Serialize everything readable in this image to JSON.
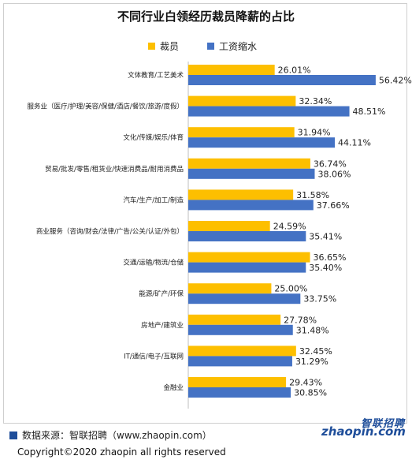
{
  "title": "不同行业白领经历裁员降薪的占比",
  "legend": [
    {
      "name": "裁员",
      "color": "#fdbf00"
    },
    {
      "name": "工资缩水",
      "color": "#4472c4"
    }
  ],
  "chart_data": {
    "type": "bar",
    "orientation": "horizontal",
    "title": "不同行业白领经历裁员降薪的占比",
    "categories": [
      "文体教育/工艺美术",
      "服务业（医疗/护理/美容/保健/酒店/餐饮/旅游/度假）",
      "文化/传媒/娱乐/体育",
      "贸易/批发/零售/租赁业/快速消费品/耐用消费品",
      "汽车/生产/加工/制造",
      "商业服务（咨询/财会/法律/广告/公关/认证/外包）",
      "交通/运输/物流/仓储",
      "能源/矿产/环保",
      "房地产/建筑业",
      "IT/通信/电子/互联网",
      "金融业"
    ],
    "series": [
      {
        "name": "裁员",
        "color": "#fdbf00",
        "values": [
          26.01,
          32.34,
          31.94,
          36.74,
          31.58,
          24.59,
          36.65,
          25.0,
          27.78,
          32.45,
          29.43
        ],
        "labels": [
          "26.01%",
          "32.34%",
          "31.94%",
          "36.74%",
          "31.58%",
          "24.59%",
          "36.65%",
          "25.00%",
          "27.78%",
          "32.45%",
          "29.43%"
        ]
      },
      {
        "name": "工资缩水",
        "color": "#4472c4",
        "values": [
          56.42,
          48.51,
          44.11,
          38.06,
          37.66,
          35.41,
          35.4,
          33.75,
          31.48,
          31.29,
          30.85
        ],
        "labels": [
          "56.42%",
          "48.51%",
          "44.11%",
          "38.06%",
          "37.66%",
          "35.41%",
          "35.40%",
          "33.75%",
          "31.48%",
          "31.29%",
          "30.85%"
        ]
      }
    ],
    "xlim": [
      0,
      60
    ],
    "grid": false,
    "legend_position": "top"
  },
  "footer": {
    "source": "数据来源：智联招聘（www.zhaopin.com）",
    "copyright": "Copyright©2020 zhaopin all rights reserved"
  },
  "logo": {
    "cn": "智联招聘",
    "en": "zhaopin.com"
  }
}
